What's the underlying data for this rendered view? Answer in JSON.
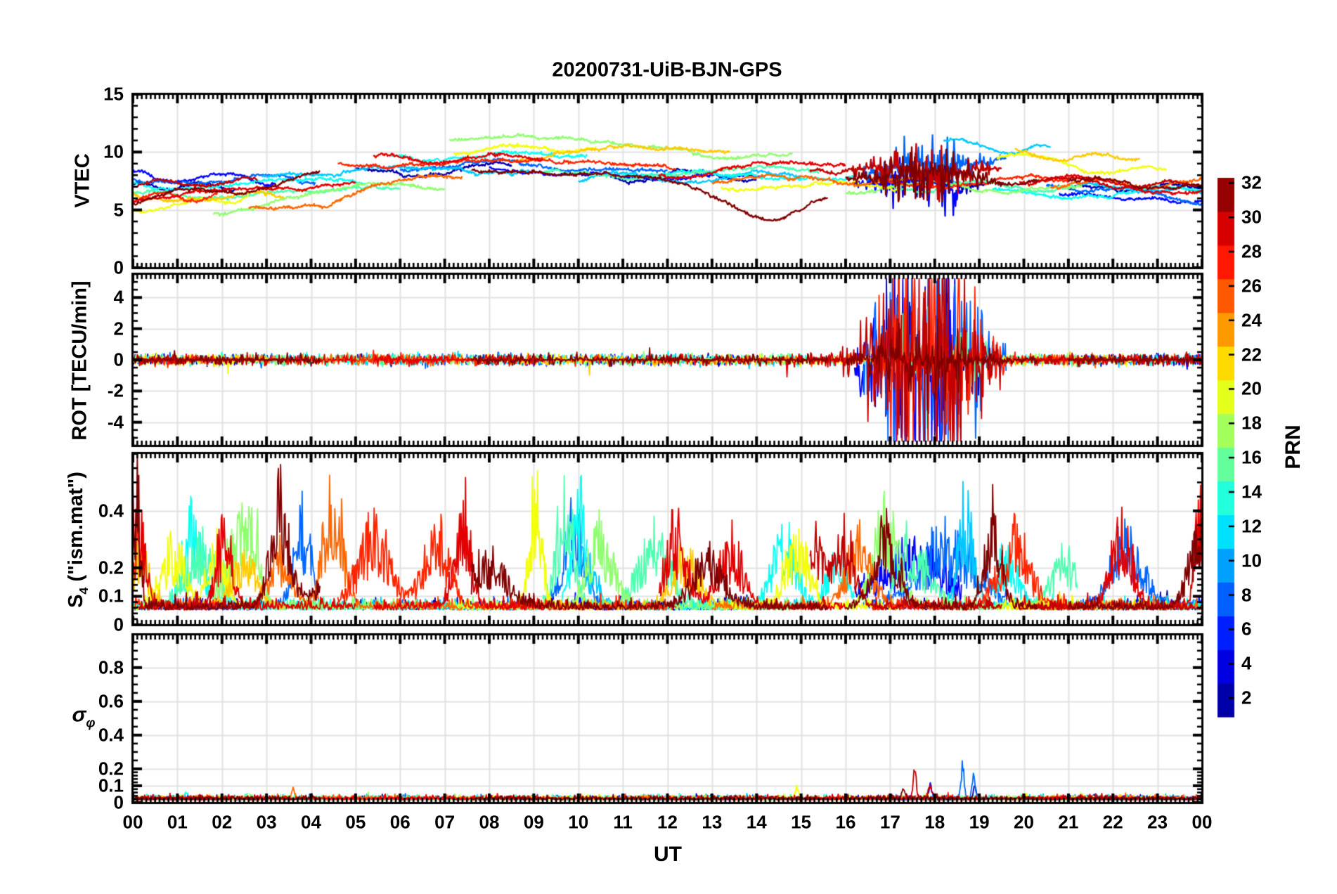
{
  "title": "20200731-UiB-BJN-GPS",
  "axes": {
    "x": {
      "label": "UT",
      "hour_labels": [
        "00",
        "01",
        "02",
        "03",
        "04",
        "05",
        "06",
        "07",
        "08",
        "09",
        "10",
        "11",
        "12",
        "13",
        "14",
        "15",
        "16",
        "17",
        "18",
        "19",
        "20",
        "21",
        "22",
        "23",
        "00"
      ]
    }
  },
  "colors": {
    "background": "#ffffff",
    "grid": "#e2e2e2",
    "axis": "#000000",
    "text": "#000000"
  },
  "colormap": {
    "name": "jet",
    "stops": [
      [
        0,
        "#00008F"
      ],
      [
        0.125,
        "#0000FF"
      ],
      [
        0.375,
        "#00FFFF"
      ],
      [
        0.625,
        "#FFFF00"
      ],
      [
        0.875,
        "#FF0000"
      ],
      [
        1,
        "#800000"
      ]
    ]
  },
  "colorbar": {
    "label": "PRN",
    "tick_values": [
      2,
      4,
      6,
      8,
      10,
      12,
      14,
      16,
      18,
      20,
      22,
      24,
      26,
      28,
      30,
      32
    ],
    "tick_labels": [
      "2",
      "4",
      "6",
      "8",
      "10",
      "12",
      "14",
      "16",
      "18",
      "20",
      "22",
      "24",
      "26",
      "28",
      "30",
      "32"
    ],
    "clim": [
      0.9,
      32.3
    ],
    "blocks": 16
  },
  "chart_data": {
    "type": "line",
    "x_unit": "hours UT",
    "x_range": [
      0,
      24
    ],
    "panels": [
      {
        "name": "VTEC",
        "ylabel": {
          "pre": "VTEC",
          "sub": "",
          "post": ""
        },
        "ylim": [
          0,
          15
        ],
        "yticks": [
          0,
          5,
          10,
          15
        ],
        "ytick_labels": [
          "0",
          "5",
          "10",
          "15"
        ],
        "minor_step": 1
      },
      {
        "name": "ROT",
        "ylabel": {
          "pre": "ROT [TECU/min]",
          "sub": "",
          "post": ""
        },
        "ylim": [
          -5.5,
          5.5
        ],
        "yticks": [
          -4,
          -2,
          0,
          2,
          4
        ],
        "ytick_labels": [
          "-4",
          "-2",
          "0",
          "2",
          "4"
        ],
        "minor_step": 0.5
      },
      {
        "name": "S4",
        "ylabel": {
          "pre": "S",
          "sub": "4",
          "post": " (\"ism.mat\")"
        },
        "ylim": [
          0,
          0.602
        ],
        "yticks": [
          0,
          0.1,
          0.2,
          0.4
        ],
        "ytick_labels": [
          "0",
          "0.1",
          "0.2",
          "0.4"
        ],
        "minor_fine": 0.02,
        "minor_coarse": 0.05,
        "minor_split": 0.2
      },
      {
        "name": "sigma_phi",
        "ylabel": {
          "pre": "σ",
          "sub": "φ",
          "post": ""
        },
        "ylim": [
          0,
          0.995
        ],
        "yticks": [
          0,
          0.1,
          0.2,
          0.4,
          0.6,
          0.8
        ],
        "ytick_labels": [
          "0",
          "0.1",
          "0.2",
          "0.4",
          "0.6",
          "0.8"
        ],
        "minor_fine": 0.02,
        "minor_coarse": 0.05,
        "minor_split": 0.2
      }
    ],
    "events": {
      "rot_burst_center": 17.8,
      "rot_burst_sigma": 0.8,
      "rot_burst_window": [
        16.2,
        19.8
      ]
    },
    "series": [
      {
        "prn": 2,
        "t": [
          0,
          2.3
        ],
        "vtec": [
          7.0,
          7.3
        ]
      },
      {
        "prn": 2,
        "t": [
          5.0,
          8.5
        ],
        "vtec": [
          8.3,
          8.6
        ]
      },
      {
        "prn": 2,
        "t": [
          10.8,
          14.0
        ],
        "vtec": [
          7.9,
          7.6
        ]
      },
      {
        "prn": 2,
        "t": [
          16.9,
          19.3
        ],
        "vtec": [
          8.0,
          7.0
        ],
        "jitter": 0.5,
        "rot_burst": 2.2,
        "sigma_spikes": [
          [
            18.9,
            0.08
          ]
        ]
      },
      {
        "prn": 2,
        "t": [
          21,
          24
        ],
        "vtec": [
          6.6,
          6.9
        ]
      },
      {
        "prn": 5,
        "t": [
          0,
          3.2
        ],
        "vtec": [
          8.0,
          7.6
        ]
      },
      {
        "prn": 5,
        "t": [
          8,
          14.2
        ],
        "vtec": [
          8.4,
          8.0
        ]
      },
      {
        "prn": 5,
        "t": [
          16.2,
          18.6
        ],
        "vtec": [
          7.5,
          6.5
        ],
        "jitter": 0.9,
        "rot_burst": 4.3,
        "s4_bursts": [
          [
            17.5,
            0.22,
            1.2
          ]
        ],
        "sigma_spikes": [
          [
            17.9,
            0.1
          ]
        ]
      },
      {
        "prn": 5,
        "t": [
          20.8,
          24
        ],
        "vtec": [
          6.5,
          6.1
        ]
      },
      {
        "prn": 8,
        "t": [
          0,
          4.1
        ],
        "vtec": [
          7.8,
          7.4
        ],
        "s4_bursts": [
          [
            3.8,
            0.35,
            0.3
          ]
        ]
      },
      {
        "prn": 8,
        "t": [
          6,
          12
        ],
        "vtec": [
          8.8,
          8.4
        ],
        "s4_bursts": [
          [
            9.9,
            0.35,
            0.35
          ]
        ]
      },
      {
        "prn": 8,
        "t": [
          16.4,
          19.6
        ],
        "vtec": [
          8.5,
          9.3
        ],
        "jitter": 1.0,
        "rot_burst": 4.5,
        "s4_bursts": [
          [
            18.3,
            0.28,
            0.9
          ]
        ],
        "sigma_spikes": [
          [
            18.62,
            0.24
          ],
          [
            18.87,
            0.16
          ]
        ]
      },
      {
        "prn": 8,
        "t": [
          20.5,
          24
        ],
        "vtec": [
          7.2,
          5.9
        ],
        "s4_bursts": [
          [
            22.3,
            0.3,
            0.5
          ]
        ]
      },
      {
        "prn": 11,
        "t": [
          2.9,
          9
        ],
        "vtec": [
          8.2,
          8.6
        ]
      },
      {
        "prn": 11,
        "t": [
          10,
          15
        ],
        "vtec": [
          7.6,
          7.9
        ],
        "s4_bursts": [
          [
            10.1,
            0.2,
            0.4
          ]
        ]
      },
      {
        "prn": 11,
        "t": [
          18.2,
          20.6
        ],
        "vtec": [
          10.9,
          10.1
        ],
        "s4_bursts": [
          [
            18.7,
            0.42,
            0.25
          ]
        ]
      },
      {
        "prn": 11,
        "t": [
          21.2,
          24
        ],
        "vtec": [
          7.0,
          6.4
        ]
      },
      {
        "prn": 13,
        "t": [
          0,
          5.2
        ],
        "vtec": [
          7.4,
          7.2
        ],
        "s4_bursts": [
          [
            1.35,
            0.4,
            0.3
          ]
        ],
        "sigma_spikes": [
          [
            1.2,
            0.05
          ]
        ]
      },
      {
        "prn": 13,
        "t": [
          5.8,
          10.2
        ],
        "vtec": [
          9.4,
          9.8
        ],
        "s4_bursts": [
          [
            10.05,
            0.44,
            0.25
          ]
        ]
      },
      {
        "prn": 13,
        "t": [
          11,
          16.2
        ],
        "vtec": [
          8.2,
          7.8
        ],
        "s4_bursts": [
          [
            14.6,
            0.28,
            0.4
          ],
          [
            15.8,
            0.22,
            0.3
          ]
        ]
      },
      {
        "prn": 13,
        "t": [
          19.3,
          24
        ],
        "vtec": [
          6.6,
          6.4
        ],
        "s4_bursts": [
          [
            19.6,
            0.2,
            0.4
          ]
        ]
      },
      {
        "prn": 15,
        "t": [
          0,
          6
        ],
        "vtec": [
          6.2,
          7.0
        ],
        "s4_bursts": [
          [
            1.5,
            0.25,
            0.5
          ]
        ]
      },
      {
        "prn": 15,
        "t": [
          9.2,
          15.4
        ],
        "vtec": [
          8.0,
          8.2
        ],
        "s4_bursts": [
          [
            9.7,
            0.42,
            0.3
          ],
          [
            11.7,
            0.28,
            0.5
          ]
        ]
      },
      {
        "prn": 15,
        "t": [
          17,
          21.2
        ],
        "vtec": [
          7.0,
          6.8
        ],
        "rot_burst": 1.5,
        "s4_bursts": [
          [
            17.4,
            0.28,
            0.6
          ],
          [
            20.9,
            0.22,
            0.4
          ]
        ]
      },
      {
        "prn": 17,
        "t": [
          1.8,
          7.0
        ],
        "vtec": [
          5.2,
          6.8
        ],
        "wiggle": 0.6,
        "s4_bursts": [
          [
            2.3,
            0.3,
            0.35
          ],
          [
            2.7,
            0.33,
            0.25
          ]
        ]
      },
      {
        "prn": 17,
        "t": [
          7.1,
          14.8
        ],
        "vtec": [
          11.5,
          9.8
        ],
        "wiggle": 0.5,
        "s4_bursts": [
          [
            10.5,
            0.32,
            0.4
          ]
        ]
      },
      {
        "prn": 17,
        "t": [
          16,
          21.3
        ],
        "vtec": [
          6.8,
          7.0
        ],
        "s4_bursts": [
          [
            16.9,
            0.38,
            0.4
          ]
        ]
      },
      {
        "prn": 20,
        "t": [
          0,
          2.6
        ],
        "vtec": [
          5.0,
          6.4
        ],
        "s4_bursts": [
          [
            0.9,
            0.25,
            0.4
          ],
          [
            1.9,
            0.25,
            0.3
          ]
        ]
      },
      {
        "prn": 20,
        "t": [
          7.2,
          10.4
        ],
        "vtec": [
          10.2,
          10.6
        ],
        "s4_bursts": [
          [
            9.05,
            0.52,
            0.2
          ]
        ]
      },
      {
        "prn": 20,
        "t": [
          13.2,
          17.2
        ],
        "vtec": [
          7.2,
          7.0
        ],
        "s4_bursts": [
          [
            14.9,
            0.28,
            0.4
          ]
        ],
        "sigma_spikes": [
          [
            14.9,
            0.09
          ]
        ]
      },
      {
        "prn": 20,
        "t": [
          19.4,
          23.2
        ],
        "vtec": [
          9.8,
          7.9
        ],
        "wiggle": 0.5
      },
      {
        "prn": 22,
        "t": [
          0,
          3.4
        ],
        "vtec": [
          6.3,
          6.1
        ],
        "s4_bursts": [
          [
            0.15,
            0.25,
            0.3
          ],
          [
            2.5,
            0.2,
            0.4
          ]
        ]
      },
      {
        "prn": 22,
        "t": [
          8.6,
          13.4
        ],
        "vtec": [
          9.6,
          10.4
        ],
        "s4_bursts": [
          [
            12.4,
            0.22,
            0.4
          ]
        ]
      },
      {
        "prn": 22,
        "t": [
          19.8,
          22.6
        ],
        "vtec": [
          9.9,
          9.2
        ]
      },
      {
        "prn": 25,
        "t": [
          2.6,
          7.4
        ],
        "vtec": [
          4.7,
          8.2
        ],
        "wiggle": 0.6,
        "s4_bursts": [
          [
            3.3,
            0.2,
            0.4
          ],
          [
            4.5,
            0.5,
            0.3
          ]
        ],
        "sigma_spikes": [
          [
            3.6,
            0.07
          ]
        ]
      },
      {
        "prn": 25,
        "t": [
          13,
          18.2
        ],
        "vtec": [
          7.6,
          7.4
        ],
        "s4_bursts": [
          [
            16.3,
            0.28,
            0.4
          ]
        ]
      },
      {
        "prn": 25,
        "t": [
          20.6,
          24
        ],
        "vtec": [
          7.3,
          7.0
        ]
      },
      {
        "prn": 27,
        "t": [
          0,
          1.9
        ],
        "vtec": [
          6.0,
          6.3
        ]
      },
      {
        "prn": 27,
        "t": [
          4.6,
          12.2
        ],
        "vtec": [
          9.3,
          8.6
        ],
        "wiggle": 0.5,
        "s4_bursts": [
          [
            5.4,
            0.33,
            0.5
          ],
          [
            6.8,
            0.33,
            0.4
          ]
        ]
      },
      {
        "prn": 27,
        "t": [
          16.6,
          21
        ],
        "vtec": [
          7.4,
          7.6
        ],
        "rot_burst": 3.8,
        "s4_bursts": [
          [
            19.8,
            0.3,
            0.5
          ]
        ]
      },
      {
        "prn": 29,
        "t": [
          0,
          5
        ],
        "vtec": [
          6.0,
          7.5
        ],
        "s4_bursts": [
          [
            0.15,
            0.4,
            0.2
          ],
          [
            2.05,
            0.32,
            0.25
          ]
        ]
      },
      {
        "prn": 29,
        "t": [
          5.4,
          9.2
        ],
        "vtec": [
          9.3,
          9.7
        ],
        "s4_bursts": [
          [
            7.4,
            0.45,
            0.25
          ]
        ]
      },
      {
        "prn": 29,
        "t": [
          11.8,
          16
        ],
        "vtec": [
          8.2,
          9.2
        ],
        "jitter": 0.4,
        "s4_bursts": [
          [
            12.2,
            0.33,
            0.35
          ],
          [
            13.4,
            0.28,
            0.4
          ]
        ]
      },
      {
        "prn": 29,
        "t": [
          19.9,
          24
        ],
        "vtec": [
          7.6,
          6.4
        ],
        "s4_bursts": [
          [
            22.2,
            0.33,
            0.35
          ],
          [
            23.93,
            0.42,
            0.15
          ]
        ]
      },
      {
        "prn": 30,
        "t": [
          0.1,
          2.8
        ],
        "vtec": [
          7.2,
          7.4
        ]
      },
      {
        "prn": 30,
        "t": [
          15.2,
          19.5
        ],
        "vtec": [
          8.7,
          8.2
        ],
        "jitter": 0.9,
        "rot_burst": 4.6,
        "s4_bursts": [
          [
            15.3,
            0.33,
            0.35
          ],
          [
            16.0,
            0.3,
            0.3
          ]
        ],
        "sigma_spikes": [
          [
            17.55,
            0.22
          ],
          [
            17.9,
            0.11
          ]
        ]
      },
      {
        "prn": 30,
        "t": [
          20.2,
          24
        ],
        "vtec": [
          7.4,
          7.2
        ]
      },
      {
        "prn": 32,
        "t": [
          0,
          4.2
        ],
        "vtec": [
          5.8,
          7.6
        ],
        "wiggle": 0.5,
        "s4_bursts": [
          [
            0.07,
            0.55,
            0.12
          ],
          [
            3.3,
            0.45,
            0.3
          ],
          [
            4.8,
            0.16,
            0.8
          ]
        ]
      },
      {
        "prn": 32,
        "t": [
          7.6,
          15.6
        ],
        "vtec": [
          8.8,
          6.5
        ],
        "wiggle": 0.4,
        "dip": [
          14.3,
          2.2,
          1.1
        ],
        "s4_bursts": [
          [
            8.0,
            0.2,
            0.6
          ],
          [
            12.9,
            0.22,
            0.5
          ]
        ]
      },
      {
        "prn": 32,
        "t": [
          16,
          20.3
        ],
        "vtec": [
          8.0,
          7.8
        ],
        "jitter": 0.9,
        "rot_burst": 1.2,
        "s4_bursts": [
          [
            16.9,
            0.33,
            0.4
          ],
          [
            19.3,
            0.4,
            0.25
          ]
        ],
        "sigma_spikes": [
          [
            17.3,
            0.08
          ]
        ]
      },
      {
        "prn": 32,
        "t": [
          21,
          24
        ],
        "vtec": [
          7.2,
          6.9
        ],
        "s4_bursts": [
          [
            23.9,
            0.3,
            0.3
          ]
        ]
      }
    ]
  },
  "render": {
    "seed": 20200731
  }
}
